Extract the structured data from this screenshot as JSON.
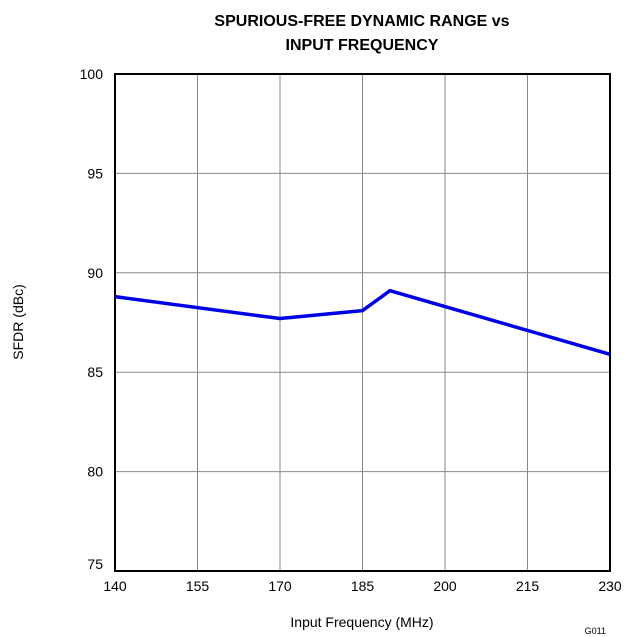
{
  "chart_data": {
    "type": "line",
    "title": [
      "SPURIOUS-FREE DYNAMIC RANGE vs",
      "INPUT FREQUENCY"
    ],
    "x_label": "Input Frequency (MHz)",
    "y_label": "SFDR (dBc)",
    "annotation": "G011",
    "series": [
      {
        "name": "SFDR",
        "color": "#0000e6",
        "x": [
          140,
          170,
          185,
          190,
          230
        ],
        "values": [
          88.8,
          87.7,
          88.1,
          89.1,
          85.9
        ]
      }
    ],
    "xlim": [
      140,
      230
    ],
    "xticks": [
      140,
      155,
      170,
      185,
      200,
      215,
      230
    ],
    "ylim": [
      75,
      100
    ],
    "yticks": [
      75,
      80,
      85,
      90,
      95,
      100
    ],
    "grid": true
  }
}
